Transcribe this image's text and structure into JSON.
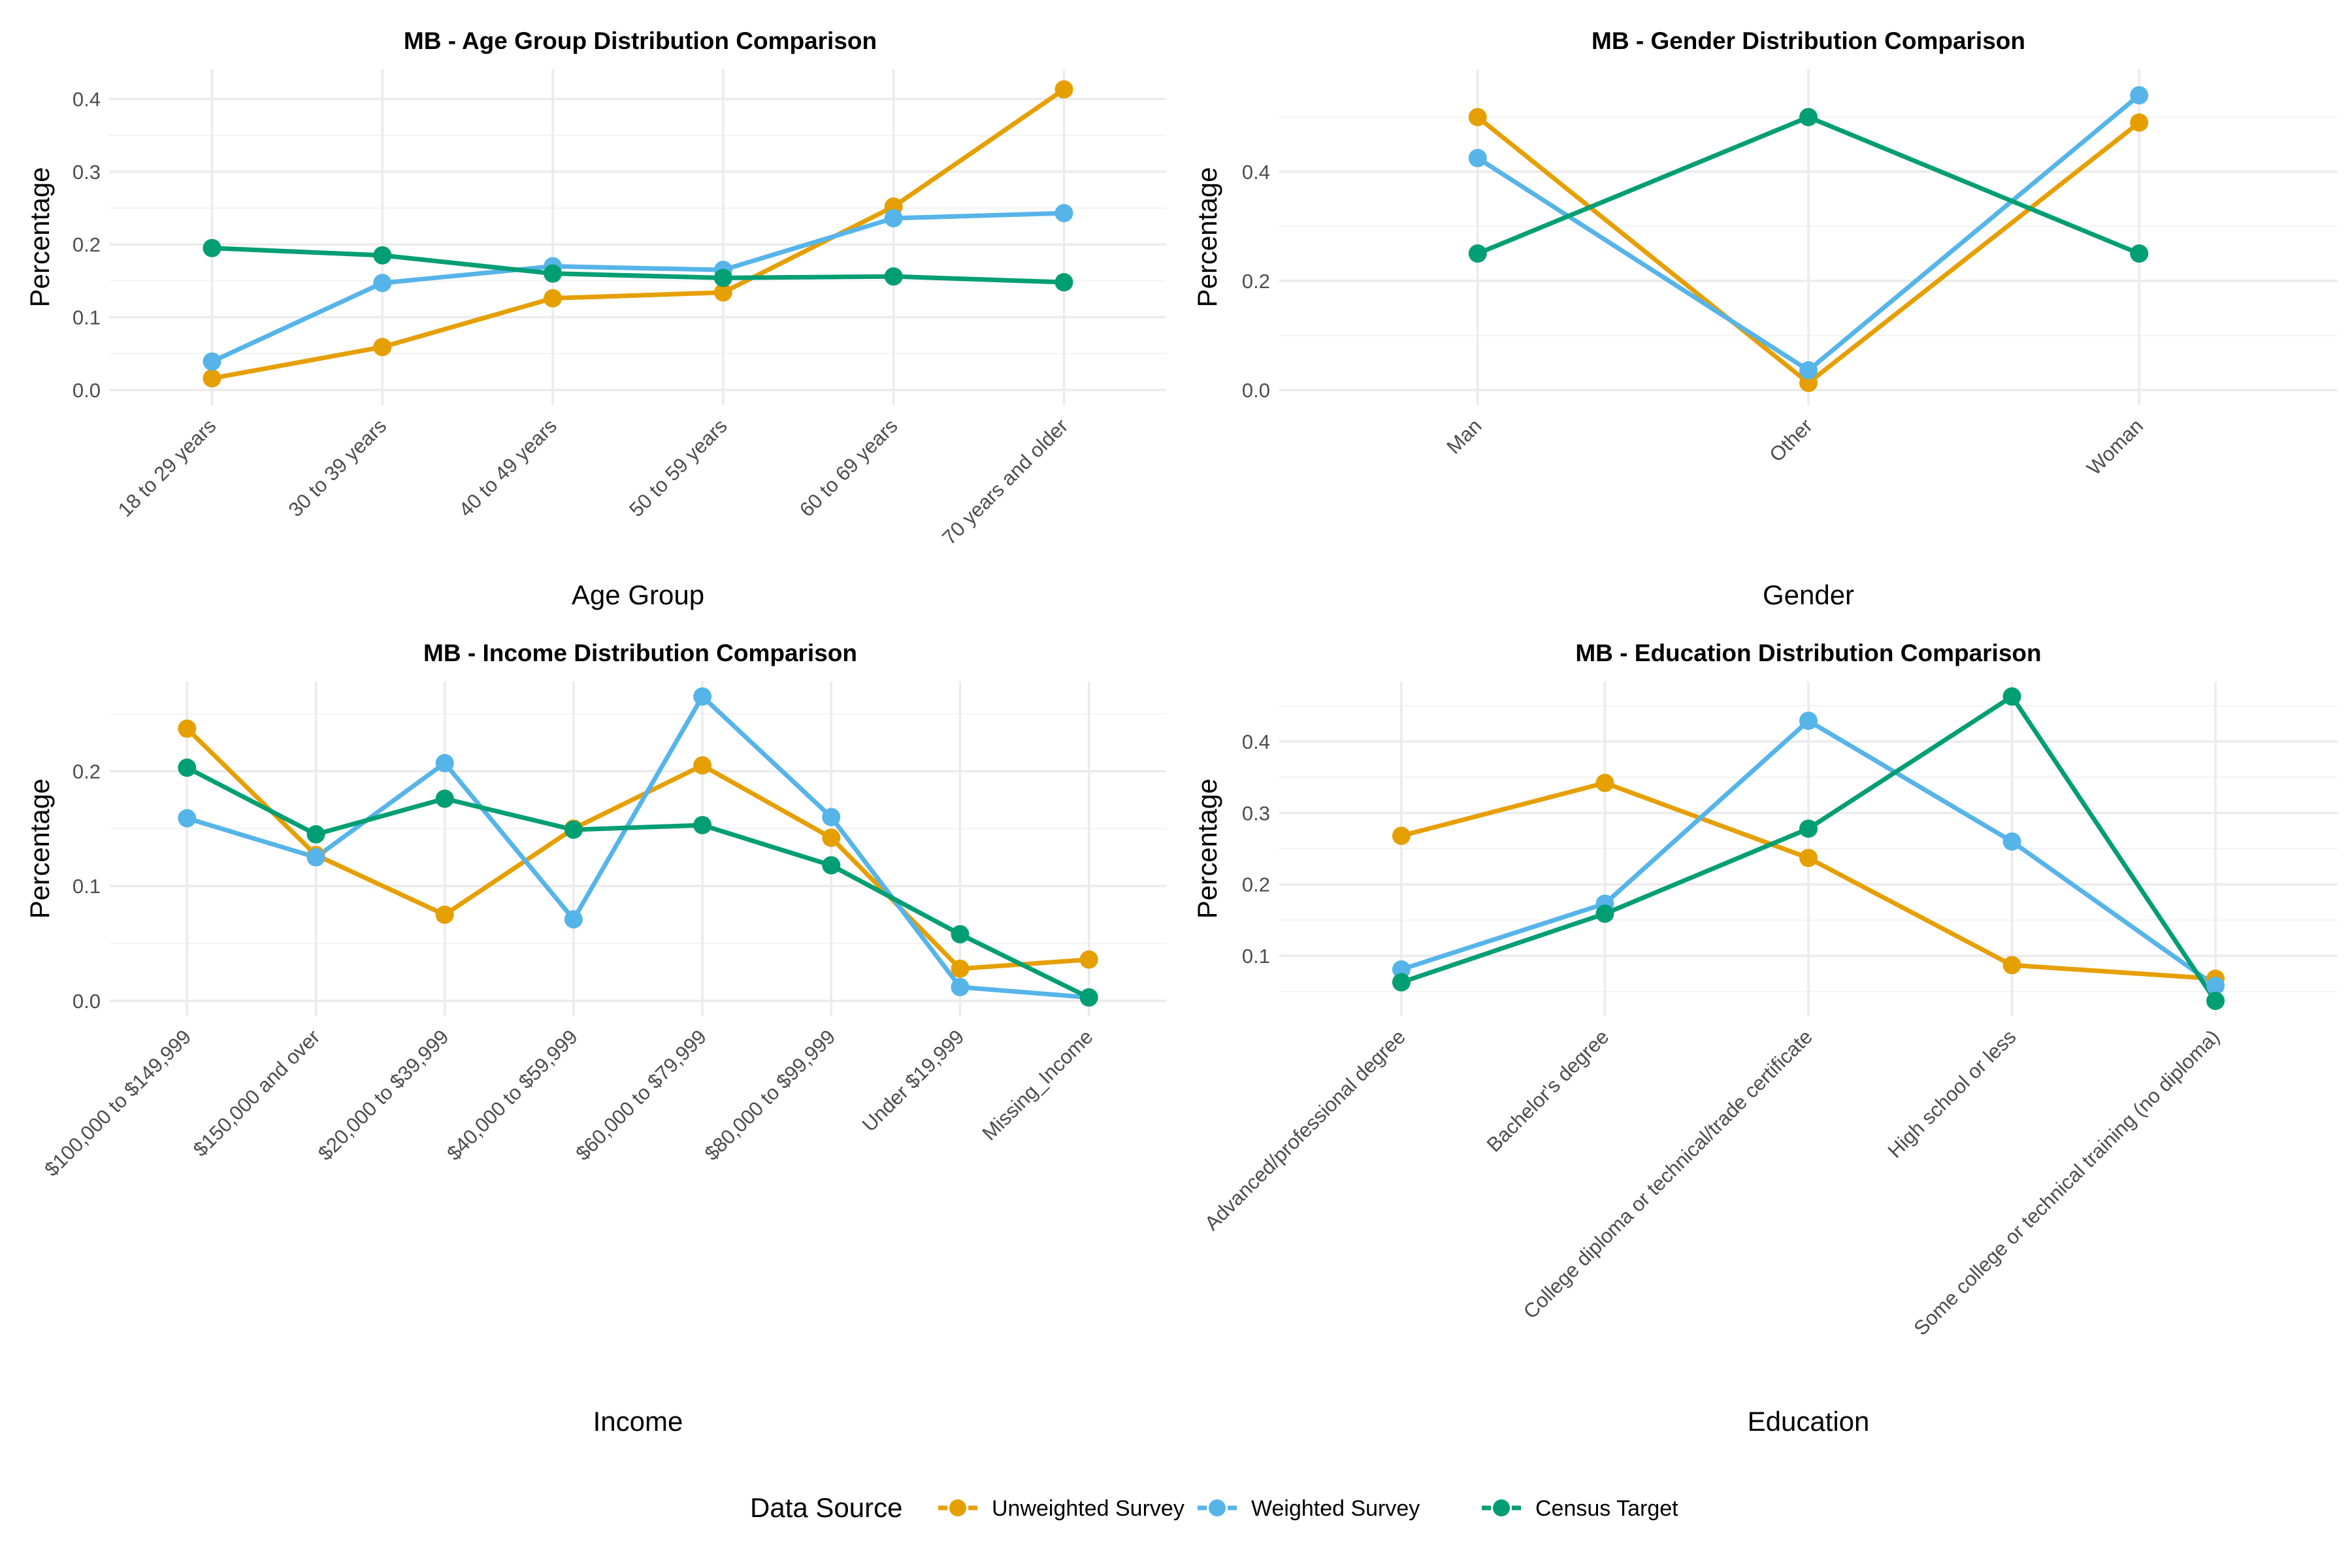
{
  "colors": {
    "Unweighted Survey": "#E69F00",
    "Weighted Survey": "#56B4E9",
    "Census Target": "#009E73"
  },
  "legend": {
    "title": "Data Source",
    "items": [
      "Unweighted Survey",
      "Weighted Survey",
      "Census Target"
    ]
  },
  "chart_data": [
    {
      "type": "line",
      "title": "MB - Age Group Distribution Comparison",
      "xlabel": "Age Group",
      "ylabel": "Percentage",
      "categories": [
        "18 to 29 years",
        "30 to 39 years",
        "40 to 49 years",
        "50 to 59 years",
        "60 to 69 years",
        "70 years and older"
      ],
      "ylim": [
        0,
        0.42
      ],
      "yticks": [
        0.0,
        0.1,
        0.2,
        0.3,
        0.4
      ],
      "ytick_labels": [
        "0.0",
        "0.1",
        "0.2",
        "0.3",
        "0.4"
      ],
      "series": [
        {
          "name": "Unweighted Survey",
          "values": [
            0.016,
            0.059,
            0.126,
            0.134,
            0.252,
            0.413
          ]
        },
        {
          "name": "Weighted Survey",
          "values": [
            0.039,
            0.147,
            0.17,
            0.165,
            0.236,
            0.243
          ]
        },
        {
          "name": "Census Target",
          "values": [
            0.195,
            0.185,
            0.16,
            0.154,
            0.156,
            0.148
          ]
        }
      ]
    },
    {
      "type": "line",
      "title": "MB - Gender Distribution Comparison",
      "xlabel": "Gender",
      "ylabel": "Percentage",
      "categories": [
        "Man",
        "Other",
        "Woman"
      ],
      "ylim": [
        0,
        0.56
      ],
      "yticks": [
        0.0,
        0.2,
        0.4
      ],
      "ytick_labels": [
        "0.0",
        "0.2",
        "0.4"
      ],
      "series": [
        {
          "name": "Unweighted Survey",
          "values": [
            0.5,
            0.013,
            0.49
          ]
        },
        {
          "name": "Weighted Survey",
          "values": [
            0.425,
            0.036,
            0.54
          ]
        },
        {
          "name": "Census Target",
          "values": [
            0.25,
            0.5,
            0.25
          ]
        }
      ]
    },
    {
      "type": "line",
      "title": "MB - Income Distribution Comparison",
      "xlabel": "Income",
      "ylabel": "Percentage",
      "categories": [
        "$100,000 to $149,999",
        "$150,000 and over",
        "$20,000 to $39,999",
        "$40,000 to $59,999",
        "$60,000 to $79,999",
        "$80,000 to $99,999",
        "Under $19,999",
        "Missing_Income"
      ],
      "ylim": [
        0,
        0.265
      ],
      "yticks": [
        0.0,
        0.1,
        0.2
      ],
      "ytick_labels": [
        "0.0",
        "0.1",
        "0.2"
      ],
      "series": [
        {
          "name": "Unweighted Survey",
          "values": [
            0.237,
            0.127,
            0.075,
            0.15,
            0.205,
            0.142,
            0.028,
            0.036
          ]
        },
        {
          "name": "Weighted Survey",
          "values": [
            0.159,
            0.125,
            0.207,
            0.071,
            0.265,
            0.16,
            0.012,
            0.003
          ]
        },
        {
          "name": "Census Target",
          "values": [
            0.203,
            0.145,
            0.176,
            0.149,
            0.153,
            0.118,
            0.058,
            0.003
          ]
        }
      ]
    },
    {
      "type": "line",
      "title": "MB - Education Distribution Comparison",
      "xlabel": "Education",
      "ylabel": "Percentage",
      "categories": [
        "Advanced/professional degree",
        "Bachelor's degree",
        "College diploma or technical/trade certificate",
        "High school or less",
        "Some college or technical training (no diploma)"
      ],
      "ylim": [
        0.037,
        0.463
      ],
      "yticks": [
        0.1,
        0.2,
        0.3,
        0.4
      ],
      "ytick_labels": [
        "0.1",
        "0.2",
        "0.3",
        "0.4"
      ],
      "series": [
        {
          "name": "Unweighted Survey",
          "values": [
            0.268,
            0.342,
            0.237,
            0.087,
            0.068
          ]
        },
        {
          "name": "Weighted Survey",
          "values": [
            0.081,
            0.173,
            0.429,
            0.26,
            0.058
          ]
        },
        {
          "name": "Census Target",
          "values": [
            0.063,
            0.159,
            0.278,
            0.463,
            0.037
          ]
        }
      ]
    }
  ]
}
